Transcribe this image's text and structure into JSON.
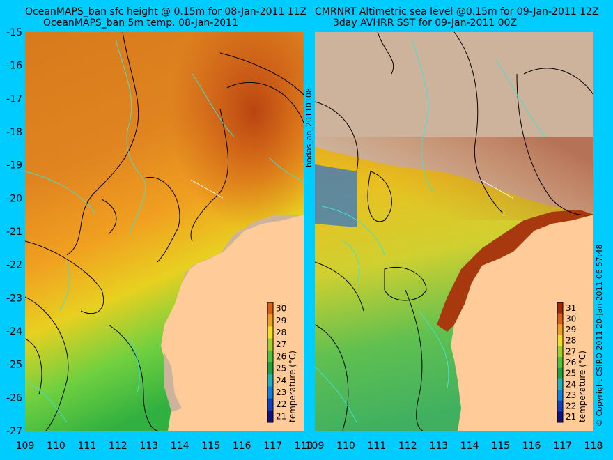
{
  "left_panel": {
    "title_line1": "OceanMAPS_ban sfc height @ 0.15m for 08-Jan-2011 11Z",
    "title_line2": "OceanMAPS_ban 5m temp. 08-Jan-2011",
    "colorbar_ticks": [
      "30",
      "29",
      "28",
      "27",
      "26",
      "25",
      "24",
      "23",
      "22",
      "21"
    ],
    "colorbar_label": "temperature (°C)"
  },
  "right_panel": {
    "title_line1": "CMRNRT Altimetric sea level  @0.15m  for 09-Jan-2011 12Z",
    "title_line2": "3day AVHRR SST for 09-Jan-2011 00Z",
    "colorbar_ticks": [
      "31",
      "30",
      "29",
      "28",
      "27",
      "26",
      "25",
      "24",
      "23",
      "22",
      "21"
    ],
    "colorbar_label": "temperature (°C)"
  },
  "y_axis_ticks": [
    "-15",
    "-16",
    "-17",
    "-18",
    "-19",
    "-20",
    "-21",
    "-22",
    "-23",
    "-24",
    "-25",
    "-26",
    "-27"
  ],
  "x_axis_ticks": [
    "109",
    "110",
    "111",
    "112",
    "113",
    "114",
    "115",
    "116",
    "117",
    "118"
  ],
  "middle_vertical_label": "bodas_an_20110108",
  "right_vertical_label": "© Copyright CSIRO 2011   20-Jan-2011 06:57:48",
  "colors": {
    "background": "#00ccff",
    "land": "#ffcc99",
    "no_data": "#cdb39b",
    "contour": "#000000",
    "contour_cyan": "#40e0d0"
  }
}
